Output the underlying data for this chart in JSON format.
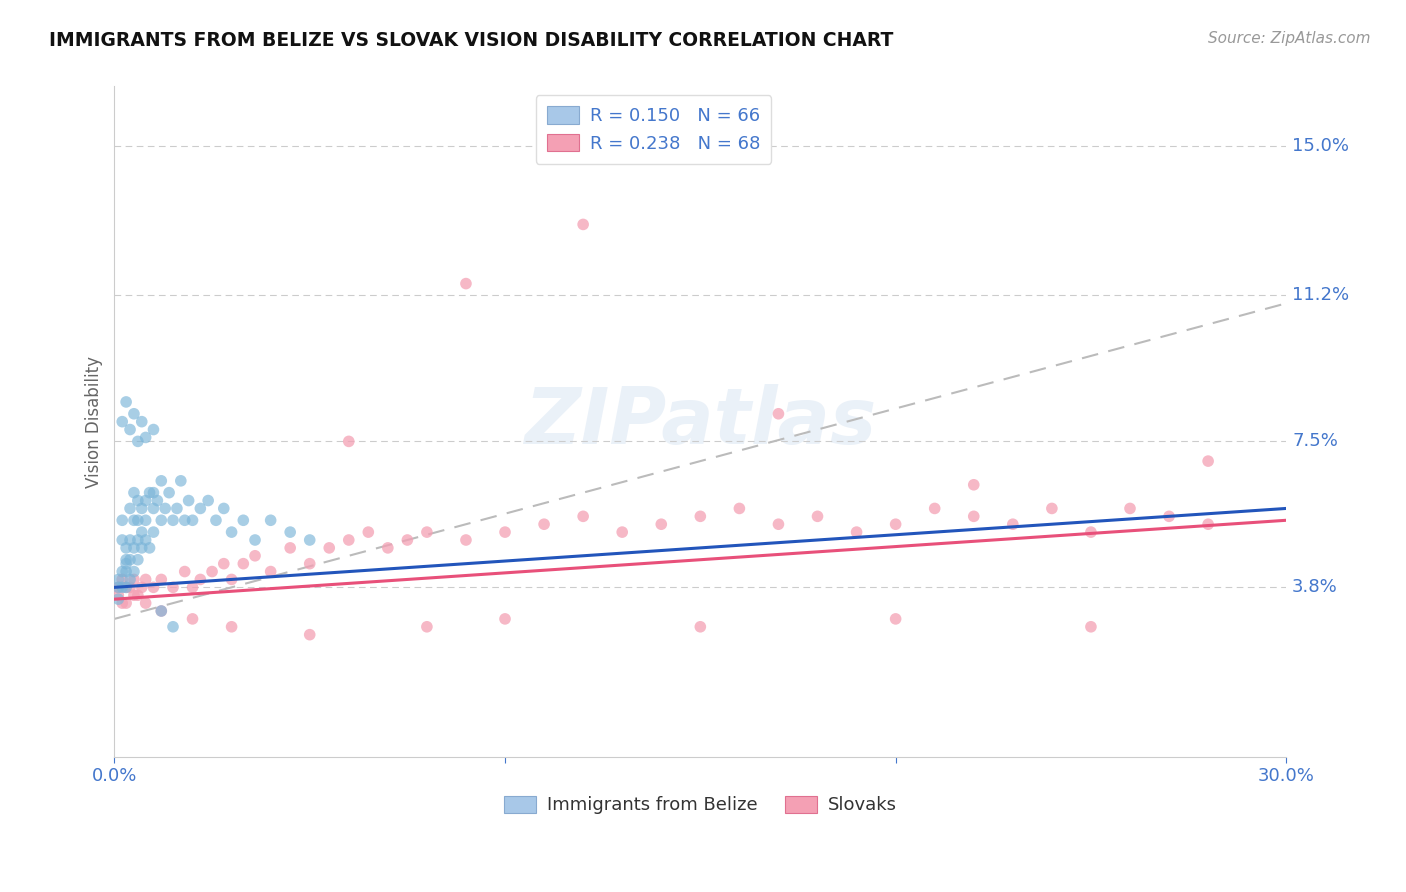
{
  "title": "IMMIGRANTS FROM BELIZE VS SLOVAK VISION DISABILITY CORRELATION CHART",
  "source": "Source: ZipAtlas.com",
  "ylabel": "Vision Disability",
  "xlim": [
    0.0,
    0.3
  ],
  "ylim": [
    -0.005,
    0.165
  ],
  "ytick_vals": [
    0.038,
    0.075,
    0.112,
    0.15
  ],
  "ytick_labels": [
    "3.8%",
    "7.5%",
    "11.2%",
    "15.0%"
  ],
  "legend_entries": [
    {
      "label": "R = 0.150   N = 66",
      "color": "#a8c8e8"
    },
    {
      "label": "R = 0.238   N = 68",
      "color": "#f4a0b4"
    }
  ],
  "belize_color": "#7ab4d8",
  "slovak_color": "#f4a0b4",
  "belize_line_color": "#2255bb",
  "slovak_line_color": "#e8507a",
  "dash_color": "#bbbbbb",
  "grid_color": "#cccccc",
  "background_color": "#ffffff",
  "belize_x": [
    0.001,
    0.001,
    0.001,
    0.002,
    0.002,
    0.002,
    0.002,
    0.003,
    0.003,
    0.003,
    0.003,
    0.003,
    0.004,
    0.004,
    0.004,
    0.004,
    0.005,
    0.005,
    0.005,
    0.005,
    0.006,
    0.006,
    0.006,
    0.006,
    0.007,
    0.007,
    0.007,
    0.008,
    0.008,
    0.008,
    0.009,
    0.009,
    0.01,
    0.01,
    0.01,
    0.011,
    0.012,
    0.012,
    0.013,
    0.014,
    0.015,
    0.016,
    0.017,
    0.018,
    0.019,
    0.02,
    0.022,
    0.024,
    0.026,
    0.028,
    0.03,
    0.033,
    0.036,
    0.04,
    0.045,
    0.05,
    0.002,
    0.003,
    0.004,
    0.005,
    0.006,
    0.007,
    0.008,
    0.01,
    0.012,
    0.015
  ],
  "belize_y": [
    0.038,
    0.04,
    0.035,
    0.042,
    0.038,
    0.05,
    0.055,
    0.045,
    0.042,
    0.048,
    0.038,
    0.044,
    0.05,
    0.045,
    0.058,
    0.04,
    0.055,
    0.048,
    0.062,
    0.042,
    0.055,
    0.05,
    0.06,
    0.045,
    0.058,
    0.052,
    0.048,
    0.06,
    0.055,
    0.05,
    0.062,
    0.048,
    0.058,
    0.052,
    0.062,
    0.06,
    0.055,
    0.065,
    0.058,
    0.062,
    0.055,
    0.058,
    0.065,
    0.055,
    0.06,
    0.055,
    0.058,
    0.06,
    0.055,
    0.058,
    0.052,
    0.055,
    0.05,
    0.055,
    0.052,
    0.05,
    0.08,
    0.085,
    0.078,
    0.082,
    0.075,
    0.08,
    0.076,
    0.078,
    0.032,
    0.028
  ],
  "slovak_x": [
    0.001,
    0.001,
    0.002,
    0.002,
    0.003,
    0.004,
    0.005,
    0.006,
    0.007,
    0.008,
    0.01,
    0.012,
    0.015,
    0.018,
    0.02,
    0.022,
    0.025,
    0.028,
    0.03,
    0.033,
    0.036,
    0.04,
    0.045,
    0.05,
    0.055,
    0.06,
    0.065,
    0.07,
    0.075,
    0.08,
    0.09,
    0.1,
    0.11,
    0.12,
    0.13,
    0.14,
    0.15,
    0.16,
    0.17,
    0.18,
    0.19,
    0.2,
    0.21,
    0.22,
    0.23,
    0.24,
    0.25,
    0.26,
    0.27,
    0.28,
    0.003,
    0.005,
    0.008,
    0.012,
    0.02,
    0.03,
    0.05,
    0.08,
    0.1,
    0.15,
    0.2,
    0.25,
    0.06,
    0.09,
    0.12,
    0.17,
    0.22,
    0.28
  ],
  "slovak_y": [
    0.038,
    0.036,
    0.04,
    0.034,
    0.038,
    0.038,
    0.04,
    0.036,
    0.038,
    0.04,
    0.038,
    0.04,
    0.038,
    0.042,
    0.038,
    0.04,
    0.042,
    0.044,
    0.04,
    0.044,
    0.046,
    0.042,
    0.048,
    0.044,
    0.048,
    0.05,
    0.052,
    0.048,
    0.05,
    0.052,
    0.05,
    0.052,
    0.054,
    0.056,
    0.052,
    0.054,
    0.056,
    0.058,
    0.054,
    0.056,
    0.052,
    0.054,
    0.058,
    0.056,
    0.054,
    0.058,
    0.052,
    0.058,
    0.056,
    0.054,
    0.034,
    0.036,
    0.034,
    0.032,
    0.03,
    0.028,
    0.026,
    0.028,
    0.03,
    0.028,
    0.03,
    0.028,
    0.075,
    0.115,
    0.13,
    0.082,
    0.064,
    0.07
  ],
  "belize_reg": [
    0.0,
    0.3,
    0.038,
    0.058
  ],
  "slovak_reg": [
    0.0,
    0.3,
    0.035,
    0.055
  ],
  "dash_line": [
    0.0,
    0.3,
    0.03,
    0.11
  ]
}
